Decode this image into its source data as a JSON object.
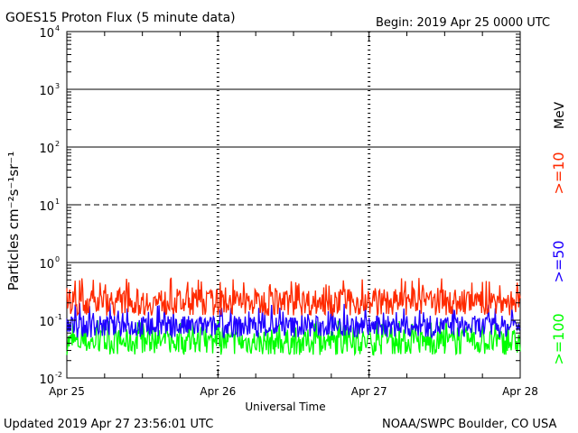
{
  "header": {
    "title": "GOES15 Proton Flux (5 minute data)",
    "begin": "Begin: 2019 Apr 25 0000 UTC"
  },
  "footer": {
    "updated": "Updated 2019 Apr 27 23:56:01 UTC",
    "credit": "NOAA/SWPC Boulder, CO USA"
  },
  "colors": {
    "ge10": "#ff2a00",
    "ge50": "#1f00ff",
    "ge100": "#00ff00",
    "axis": "#000000"
  },
  "chart_data": {
    "type": "line",
    "title": "GOES15 Proton Flux (5 minute data)",
    "xlabel": "Universal Time",
    "ylabel": "Particles cm⁻²s⁻¹sr⁻¹",
    "yscale": "log",
    "ylim": [
      0.01,
      10000
    ],
    "y_tick_labels": [
      {
        "base": "10",
        "exp": "-2"
      },
      {
        "base": "10",
        "exp": "-1"
      },
      {
        "base": "10",
        "exp": "0"
      },
      {
        "base": "10",
        "exp": "1"
      },
      {
        "base": "10",
        "exp": "2"
      },
      {
        "base": "10",
        "exp": "3"
      },
      {
        "base": "10",
        "exp": "4"
      }
    ],
    "x_tick_labels": [
      "Apr 25",
      "Apr 26",
      "Apr 27",
      "Apr 28"
    ],
    "xlim": [
      "2019-04-25 00:00",
      "2019-04-28 00:00"
    ],
    "right_axis_unit": "MeV",
    "grid": "horizontal lines at each decade (10¹ dashed)",
    "series": [
      {
        "name": ">=10",
        "color": "#ff2a00",
        "typical_range": [
          0.12,
          0.35
        ],
        "peaks": 0.55,
        "x_end": "2019-04-28 00:00"
      },
      {
        "name": ">=50",
        "color": "#1f00ff",
        "typical_range": [
          0.05,
          0.12
        ],
        "peaks": 0.2,
        "x_end": "2019-04-28 00:00"
      },
      {
        "name": ">=100",
        "color": "#00ff00",
        "typical_range": [
          0.025,
          0.07
        ],
        "peaks": 0.1,
        "x_end": "2019-04-28 00:00"
      }
    ]
  }
}
